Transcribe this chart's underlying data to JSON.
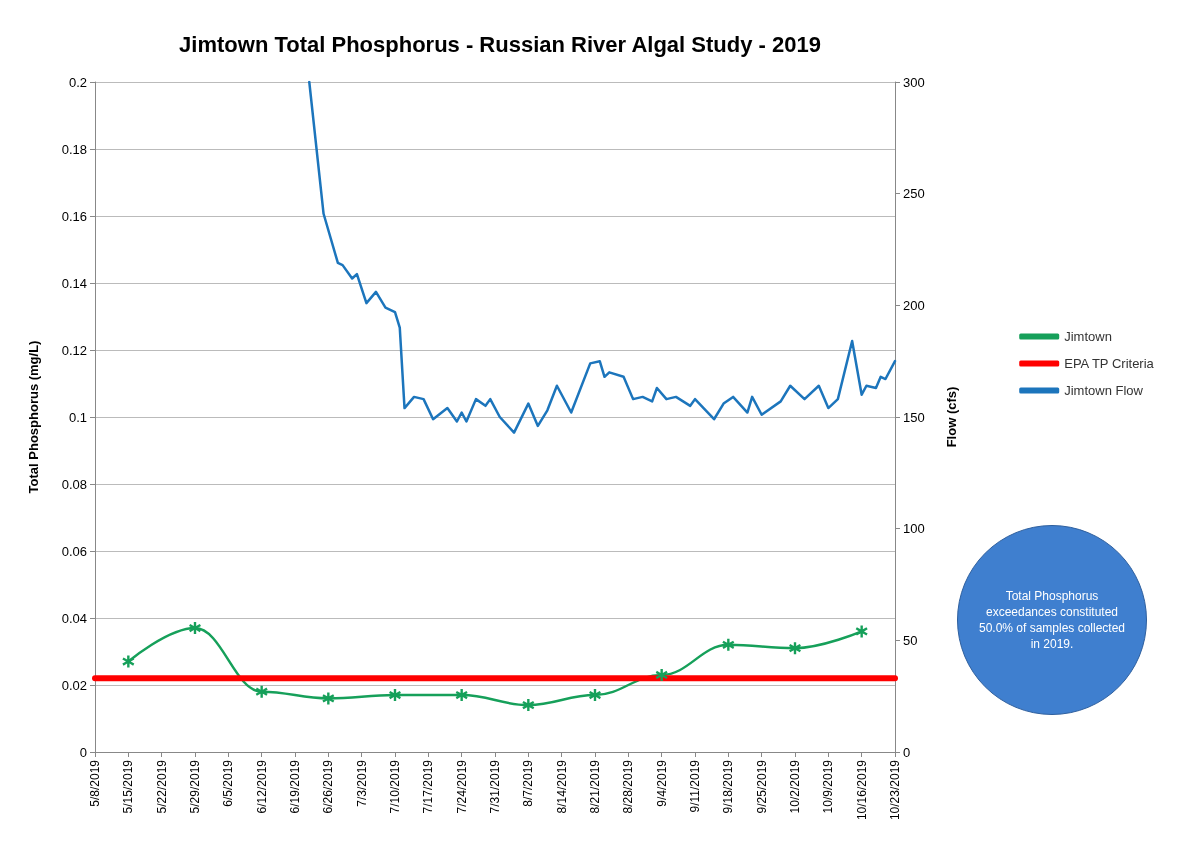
{
  "chart_data": {
    "type": "line",
    "title": "Jimtown Total Phosphorus - Russian River Algal Study - 2019",
    "ylabel": "Total Phosphorus (mg/L)",
    "y2label": "Flow (cfs)",
    "annotations": [
      "Total Phosphorus exceedances constituted 50.0% of samples collected in 2019."
    ],
    "xlim": [
      "2019-05-08",
      "2019-10-23"
    ],
    "xticks": [
      {
        "value": "2019-05-08",
        "label": "5/8/2019"
      },
      {
        "value": "2019-05-15",
        "label": "5/15/2019"
      },
      {
        "value": "2019-05-22",
        "label": "5/22/2019"
      },
      {
        "value": "2019-05-29",
        "label": "5/29/2019"
      },
      {
        "value": "2019-06-05",
        "label": "6/5/2019"
      },
      {
        "value": "2019-06-12",
        "label": "6/12/2019"
      },
      {
        "value": "2019-06-19",
        "label": "6/19/2019"
      },
      {
        "value": "2019-06-26",
        "label": "6/26/2019"
      },
      {
        "value": "2019-07-03",
        "label": "7/3/2019"
      },
      {
        "value": "2019-07-10",
        "label": "7/10/2019"
      },
      {
        "value": "2019-07-17",
        "label": "7/17/2019"
      },
      {
        "value": "2019-07-24",
        "label": "7/24/2019"
      },
      {
        "value": "2019-07-31",
        "label": "7/31/2019"
      },
      {
        "value": "2019-08-07",
        "label": "8/7/2019"
      },
      {
        "value": "2019-08-14",
        "label": "8/14/2019"
      },
      {
        "value": "2019-08-21",
        "label": "8/21/2019"
      },
      {
        "value": "2019-08-28",
        "label": "8/28/2019"
      },
      {
        "value": "2019-09-04",
        "label": "9/4/2019"
      },
      {
        "value": "2019-09-11",
        "label": "9/11/2019"
      },
      {
        "value": "2019-09-18",
        "label": "9/18/2019"
      },
      {
        "value": "2019-09-25",
        "label": "9/25/2019"
      },
      {
        "value": "2019-10-02",
        "label": "10/2/2019"
      },
      {
        "value": "2019-10-09",
        "label": "10/9/2019"
      },
      {
        "value": "2019-10-16",
        "label": "10/16/2019"
      },
      {
        "value": "2019-10-23",
        "label": "10/23/2019"
      }
    ],
    "ylim": [
      0,
      0.2
    ],
    "yticks": [
      0,
      0.02,
      0.04,
      0.06,
      0.08,
      0.1,
      0.12,
      0.14,
      0.16,
      0.18,
      0.2
    ],
    "y2lim": [
      0,
      300
    ],
    "y2ticks": [
      0,
      50,
      100,
      150,
      200,
      250,
      300
    ],
    "grid": "y",
    "legend": "right",
    "series": [
      {
        "name": "Jimtown",
        "color": "#16a05a",
        "marker": "star",
        "x": [
          "2019-05-15",
          "2019-05-29",
          "2019-06-12",
          "2019-06-26",
          "2019-07-10",
          "2019-07-24",
          "2019-08-07",
          "2019-08-21",
          "2019-09-04",
          "2019-09-18",
          "2019-10-02",
          "2019-10-16"
        ],
        "values": [
          0.027,
          0.037,
          0.018,
          0.016,
          0.017,
          0.017,
          0.014,
          0.017,
          0.023,
          0.032,
          0.031,
          0.036
        ]
      },
      {
        "name": "EPA TP Criteria",
        "color": "#ff0000",
        "marker": "none",
        "x": [
          "2019-05-08",
          "2019-10-23"
        ],
        "values": [
          0.022,
          0.022
        ]
      },
      {
        "name": "Jimtown Flow",
        "color": "#1c75bc",
        "marker": "none",
        "axis": "y2",
        "x": [
          "2019-06-22",
          "2019-06-25",
          "2019-06-28",
          "2019-06-29",
          "2019-07-01",
          "2019-07-02",
          "2019-07-04",
          "2019-07-06",
          "2019-07-08",
          "2019-07-10",
          "2019-07-11",
          "2019-07-12",
          "2019-07-14",
          "2019-07-16",
          "2019-07-18",
          "2019-07-21",
          "2019-07-23",
          "2019-07-24",
          "2019-07-25",
          "2019-07-27",
          "2019-07-29",
          "2019-07-30",
          "2019-08-01",
          "2019-08-04",
          "2019-08-07",
          "2019-08-09",
          "2019-08-11",
          "2019-08-13",
          "2019-08-16",
          "2019-08-20",
          "2019-08-22",
          "2019-08-23",
          "2019-08-24",
          "2019-08-27",
          "2019-08-29",
          "2019-08-31",
          "2019-09-02",
          "2019-09-03",
          "2019-09-05",
          "2019-09-07",
          "2019-09-10",
          "2019-09-11",
          "2019-09-15",
          "2019-09-17",
          "2019-09-19",
          "2019-09-22",
          "2019-09-23",
          "2019-09-25",
          "2019-09-29",
          "2019-10-01",
          "2019-10-04",
          "2019-10-07",
          "2019-10-09",
          "2019-10-11",
          "2019-10-14",
          "2019-10-16",
          "2019-10-17",
          "2019-10-19",
          "2019-10-20",
          "2019-10-21",
          "2019-10-23"
        ],
        "values": [
          300,
          241,
          219,
          218,
          212,
          214,
          201,
          206,
          199,
          197,
          190,
          154,
          159,
          158,
          149,
          154,
          148,
          152,
          148,
          158,
          155,
          158,
          150,
          143,
          156,
          146,
          153,
          164,
          152,
          174,
          175,
          168,
          170,
          168,
          158,
          159,
          157,
          163,
          158,
          159,
          155,
          158,
          149,
          156,
          159,
          152,
          159,
          151,
          157,
          164,
          158,
          164,
          154,
          158,
          184,
          160,
          164,
          163,
          168,
          167,
          175
        ]
      }
    ]
  }
}
